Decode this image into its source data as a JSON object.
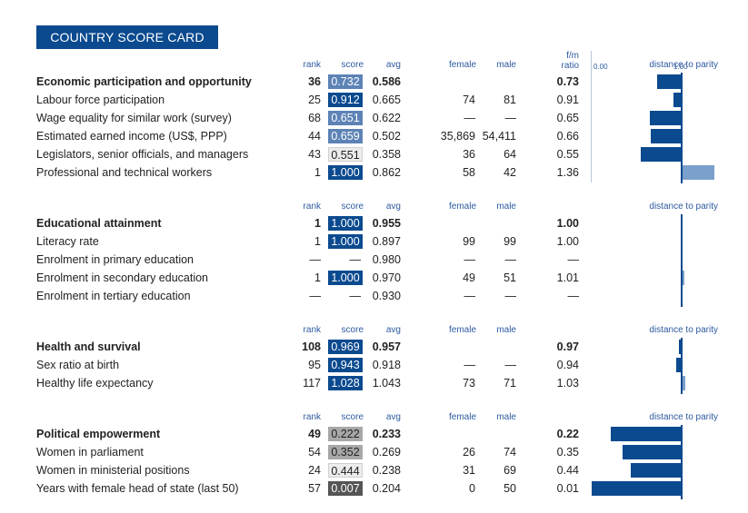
{
  "title": "COUNTRY SCORE CARD",
  "colors": {
    "navy": "#0b4a8f",
    "mid_blue": "#5d83b6",
    "light_blue": "#7ca0cc",
    "light_gray": "#ececec",
    "mid_gray": "#a8a8a8",
    "dark_gray": "#555555"
  },
  "headers": {
    "rank": "rank",
    "score": "score",
    "avg": "avg",
    "female": "female",
    "male": "male",
    "fm_top": "f/m",
    "fm_bottom": "ratio",
    "distance": "distance to parity",
    "axis_min": "0.00",
    "axis_max": "1.00"
  },
  "sections": [
    {
      "title": "Economic participation and opportunity",
      "rank": "36",
      "score": "0.732",
      "score_value": 0.732,
      "score_style": "mid",
      "avg": "0.586",
      "female": "",
      "male": "",
      "ratio": "0.73",
      "ratio_value": 0.73,
      "rows": [
        {
          "label": "Labour force participation",
          "rank": "25",
          "score": "0.912",
          "score_value": 0.912,
          "score_style": "navy",
          "avg": "0.665",
          "female": "74",
          "male": "81",
          "ratio": "0.91",
          "ratio_value": 0.91
        },
        {
          "label": "Wage equality for similar work (survey)",
          "rank": "68",
          "score": "0.651",
          "score_value": 0.651,
          "score_style": "mid",
          "avg": "0.622",
          "female": "—",
          "male": "—",
          "ratio": "0.65",
          "ratio_value": 0.65
        },
        {
          "label": "Estimated earned income (US$, PPP)",
          "rank": "44",
          "score": "0.659",
          "score_value": 0.659,
          "score_style": "mid",
          "avg": "0.502",
          "female": "35,869",
          "male": "54,411",
          "ratio": "0.66",
          "ratio_value": 0.66
        },
        {
          "label": "Legislators, senior officials, and managers",
          "rank": "43",
          "score": "0.551",
          "score_value": 0.551,
          "score_style": "light",
          "avg": "0.358",
          "female": "36",
          "male": "64",
          "ratio": "0.55",
          "ratio_value": 0.55
        },
        {
          "label": "Professional and technical workers",
          "rank": "1",
          "score": "1.000",
          "score_value": 1.0,
          "score_style": "navy",
          "avg": "0.862",
          "female": "58",
          "male": "42",
          "ratio": "1.36",
          "ratio_value": 1.36
        }
      ]
    },
    {
      "title": "Educational attainment",
      "rank": "1",
      "score": "1.000",
      "score_value": 1.0,
      "score_style": "navy",
      "avg": "0.955",
      "female": "",
      "male": "",
      "ratio": "1.00",
      "ratio_value": 1.0,
      "rows": [
        {
          "label": "Literacy rate",
          "rank": "1",
          "score": "1.000",
          "score_value": 1.0,
          "score_style": "navy",
          "avg": "0.897",
          "female": "99",
          "male": "99",
          "ratio": "1.00",
          "ratio_value": 1.0
        },
        {
          "label": "Enrolment in primary education",
          "rank": "—",
          "score": "—",
          "score_value": null,
          "score_style": "none",
          "avg": "0.980",
          "female": "—",
          "male": "—",
          "ratio": "—",
          "ratio_value": null
        },
        {
          "label": "Enrolment in secondary education",
          "rank": "1",
          "score": "1.000",
          "score_value": 1.0,
          "score_style": "navy",
          "avg": "0.970",
          "female": "49",
          "male": "51",
          "ratio": "1.01",
          "ratio_value": 1.01
        },
        {
          "label": "Enrolment in tertiary education",
          "rank": "—",
          "score": "—",
          "score_value": null,
          "score_style": "none",
          "avg": "0.930",
          "female": "—",
          "male": "—",
          "ratio": "—",
          "ratio_value": null
        }
      ]
    },
    {
      "title": "Health and survival",
      "rank": "108",
      "score": "0.969",
      "score_value": 0.969,
      "score_style": "navy",
      "avg": "0.957",
      "female": "",
      "male": "",
      "ratio": "0.97",
      "ratio_value": 0.97,
      "rows": [
        {
          "label": "Sex ratio at birth",
          "rank": "95",
          "score": "0.943",
          "score_value": 0.943,
          "score_style": "navy",
          "avg": "0.918",
          "female": "—",
          "male": "—",
          "ratio": "0.94",
          "ratio_value": 0.94
        },
        {
          "label": "Healthy life expectancy",
          "rank": "117",
          "score": "1.028",
          "score_value": 1.028,
          "score_style": "navy",
          "avg": "1.043",
          "female": "73",
          "male": "71",
          "ratio": "1.03",
          "ratio_value": 1.03
        }
      ]
    },
    {
      "title": "Political empowerment",
      "rank": "49",
      "score": "0.222",
      "score_value": 0.222,
      "score_style": "gray",
      "avg": "0.233",
      "female": "",
      "male": "",
      "ratio": "0.22",
      "ratio_value": 0.22,
      "rows": [
        {
          "label": "Women in parliament",
          "rank": "54",
          "score": "0.352",
          "score_value": 0.352,
          "score_style": "gray",
          "avg": "0.269",
          "female": "26",
          "male": "74",
          "ratio": "0.35",
          "ratio_value": 0.35
        },
        {
          "label": "Women in ministerial positions",
          "rank": "24",
          "score": "0.444",
          "score_value": 0.444,
          "score_style": "light",
          "avg": "0.238",
          "female": "31",
          "male": "69",
          "ratio": "0.44",
          "ratio_value": 0.44
        },
        {
          "label": "Years with female head of state (last 50)",
          "rank": "57",
          "score": "0.007",
          "score_value": 0.007,
          "score_style": "dark",
          "avg": "0.204",
          "female": "0",
          "male": "50",
          "ratio": "0.01",
          "ratio_value": 0.01
        }
      ]
    }
  ]
}
